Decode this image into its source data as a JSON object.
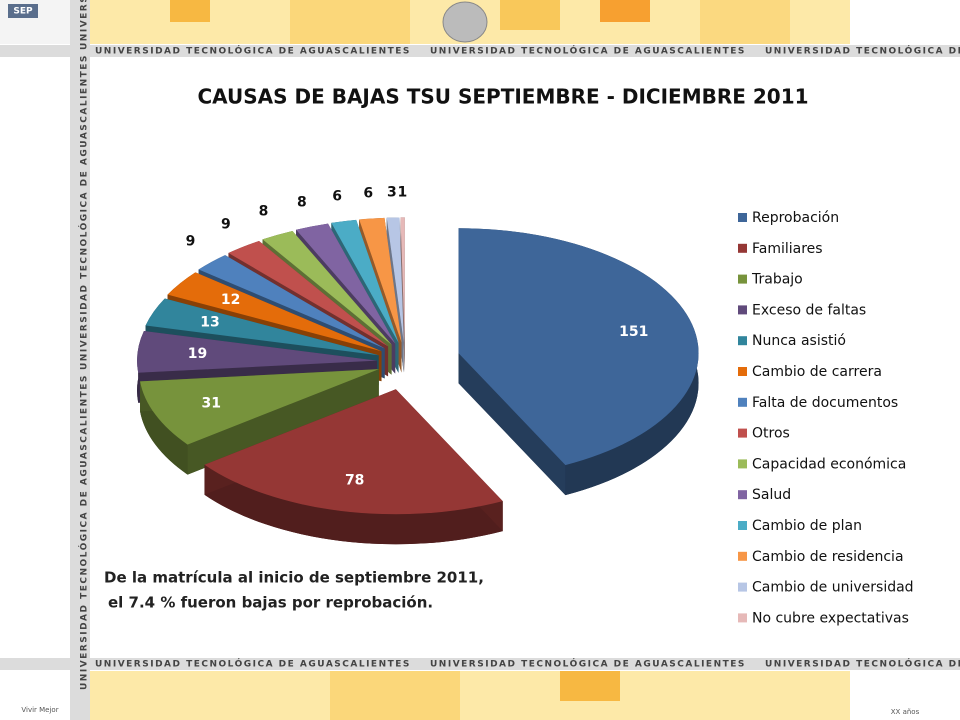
{
  "header": {
    "banner": "UNIVERSIDAD TECNOLÓGICA DE AGUASCALIENTES",
    "sep": "SEP",
    "footer_left": "Vivir Mejor",
    "footer_right": "XX años"
  },
  "chart_data": {
    "type": "pie",
    "title": "CAUSAS DE BAJAS TSU SEPTIEMBRE - DICIEMBRE 2011",
    "categories": [
      "Reprobación",
      "Familiares",
      "Trabajo",
      "Exceso de faltas",
      "Nunca asistió",
      "Cambio de carrera",
      "Falta de documentos",
      "Otros",
      "Capacidad económica",
      "Salud",
      "Cambio de plan",
      "Cambio de residencia",
      "Cambio de universidad",
      "No cubre expectativas"
    ],
    "values": [
      151,
      78,
      31,
      19,
      13,
      12,
      9,
      9,
      8,
      8,
      6,
      6,
      3,
      1
    ],
    "colors": [
      "#3e6699",
      "#953735",
      "#77933c",
      "#604a7b",
      "#31859c",
      "#e46c0a",
      "#4f81bd",
      "#c0504d",
      "#9bbb59",
      "#8064a2",
      "#4bacc6",
      "#f79646",
      "#b7c6e5",
      "#e6b9b8"
    ],
    "annotation": [
      "De la matrícula al inicio de septiembre 2011,",
      "el 7.4 % fueron bajas por reprobación."
    ],
    "legend": "right"
  }
}
